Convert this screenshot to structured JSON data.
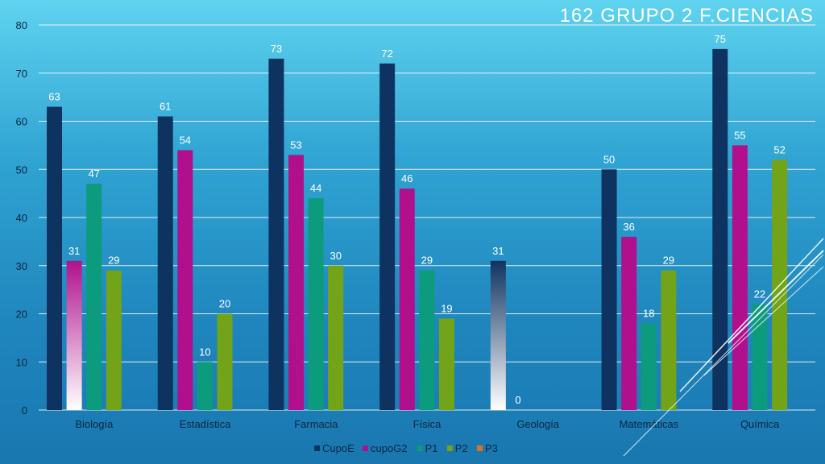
{
  "slide": {
    "title": "162  GRUPO 2  F.CIENCIAS"
  },
  "colors": {
    "CupoE": "#0f3361",
    "cupoG2": "#b0108c",
    "P1": "#0d9b7d",
    "P2": "#72a318",
    "P3": "#e0711c",
    "grid": "#ffffff",
    "text": "#0b2742",
    "label": "#ffffff"
  },
  "chart_data": {
    "type": "bar",
    "title": "",
    "xlabel": "",
    "ylabel": "",
    "ylim": [
      0,
      80
    ],
    "yticks": [
      0,
      10,
      20,
      30,
      40,
      50,
      60,
      70,
      80
    ],
    "grid": true,
    "legend_position": "bottom",
    "categories": [
      "Biología",
      "Estadística",
      "Farmacia",
      "Física",
      "Geología",
      "Matemáticas",
      "Química"
    ],
    "series": [
      {
        "name": "CupoE",
        "values": [
          63,
          61,
          73,
          72,
          31,
          50,
          75
        ]
      },
      {
        "name": "cupoG2",
        "values": [
          31,
          54,
          53,
          46,
          0,
          36,
          55
        ]
      },
      {
        "name": "P1",
        "values": [
          47,
          10,
          44,
          29,
          null,
          18,
          22
        ]
      },
      {
        "name": "P2",
        "values": [
          29,
          20,
          30,
          19,
          null,
          29,
          52
        ]
      },
      {
        "name": "P3",
        "values": [
          null,
          null,
          null,
          null,
          null,
          null,
          null
        ]
      }
    ]
  }
}
